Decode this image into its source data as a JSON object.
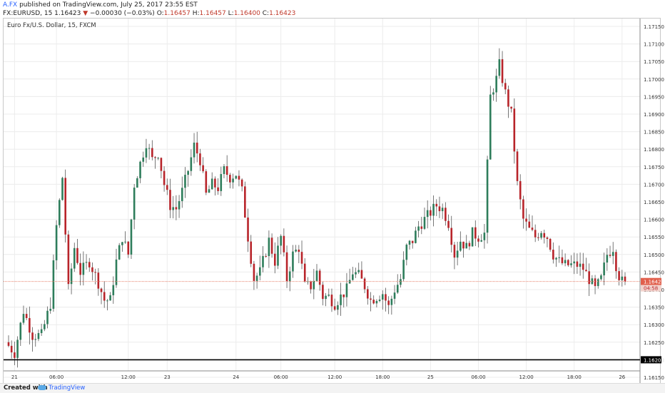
{
  "header": {
    "user": "A.FX",
    "published": " published on TradingView.com, July 25, 2017 23:55 EST",
    "symbol_line_start": "FX:EURUSD, 15  1.16423",
    "change": " −0.00030 (−0.03%)",
    "o_label": " O:",
    "o_value": "1.16457",
    "h_label": " H:",
    "h_value": "1.16457",
    "l_label": " L:",
    "l_value": "1.16400",
    "c_label": " C:",
    "c_value": "1.16423",
    "down_arrow": "▼"
  },
  "legend": "Euro Fx/U.S. Dollar, 15, FXCM",
  "price_label": "1.16423",
  "countdown_label": "04:58",
  "support_label": "1.16200",
  "footer": {
    "created_with": "Created with",
    "brand": "TradingView"
  },
  "colors": {
    "up": "#2e7d5b",
    "down": "#b8242a",
    "wick": "#555555",
    "price_line": "#e8806c",
    "price_box": "#e15f4c",
    "support": "#000000",
    "grid": "#ececec"
  },
  "chart_data": {
    "type": "candlestick",
    "interval": "15",
    "ylim": [
      1.1615,
      1.1715
    ],
    "y_ticks": [
      "1.16150",
      "1.16200",
      "1.16250",
      "1.16300",
      "1.16350",
      "1.16400",
      "1.16450",
      "1.16500",
      "1.16550",
      "1.16600",
      "1.16650",
      "1.16700",
      "1.16750",
      "1.16800",
      "1.16850",
      "1.16900",
      "1.16950",
      "1.17000",
      "1.17050",
      "1.17100",
      "1.17150"
    ],
    "x_ticks": [
      "21",
      "06:00",
      "12:00",
      "23",
      "24",
      "06:00",
      "12:00",
      "18:00",
      "25",
      "06:00",
      "12:00",
      "18:00",
      "26"
    ],
    "x_tick_positions": [
      2,
      16,
      40,
      53,
      76,
      91,
      109,
      125,
      141,
      157,
      173,
      189,
      205
    ],
    "bar_count": 207,
    "last_price": 1.16423,
    "support_level": 1.162,
    "anchors": [
      [
        0,
        1.1625
      ],
      [
        3,
        1.1622
      ],
      [
        6,
        1.1634
      ],
      [
        9,
        1.1627
      ],
      [
        12,
        1.1627
      ],
      [
        15,
        1.1636
      ],
      [
        17,
        1.1658
      ],
      [
        19,
        1.1672
      ],
      [
        21,
        1.164
      ],
      [
        23,
        1.1652
      ],
      [
        25,
        1.1645
      ],
      [
        28,
        1.1648
      ],
      [
        31,
        1.1642
      ],
      [
        33,
        1.1637
      ],
      [
        35,
        1.1637
      ],
      [
        37,
        1.1648
      ],
      [
        39,
        1.1655
      ],
      [
        41,
        1.165
      ],
      [
        43,
        1.167
      ],
      [
        45,
        1.1676
      ],
      [
        47,
        1.1682
      ],
      [
        49,
        1.1677
      ],
      [
        51,
        1.1679
      ],
      [
        53,
        1.167
      ],
      [
        55,
        1.1664
      ],
      [
        57,
        1.1663
      ],
      [
        59,
        1.1668
      ],
      [
        61,
        1.1674
      ],
      [
        63,
        1.1681
      ],
      [
        65,
        1.1677
      ],
      [
        67,
        1.1667
      ],
      [
        69,
        1.167
      ],
      [
        71,
        1.1669
      ],
      [
        73,
        1.1674
      ],
      [
        75,
        1.1672
      ],
      [
        77,
        1.1673
      ],
      [
        79,
        1.1668
      ],
      [
        81,
        1.1655
      ],
      [
        83,
        1.1643
      ],
      [
        85,
        1.1645
      ],
      [
        88,
        1.1654
      ],
      [
        90,
        1.1648
      ],
      [
        92,
        1.1655
      ],
      [
        94,
        1.1643
      ],
      [
        96,
        1.165
      ],
      [
        98,
        1.1652
      ],
      [
        100,
        1.1641
      ],
      [
        102,
        1.1641
      ],
      [
        104,
        1.1645
      ],
      [
        106,
        1.1638
      ],
      [
        108,
        1.1638
      ],
      [
        110,
        1.1636
      ],
      [
        112,
        1.1638
      ],
      [
        114,
        1.164
      ],
      [
        116,
        1.1645
      ],
      [
        118,
        1.1644
      ],
      [
        120,
        1.1641
      ],
      [
        122,
        1.1637
      ],
      [
        124,
        1.1638
      ],
      [
        126,
        1.1639
      ],
      [
        128,
        1.1635
      ],
      [
        130,
        1.164
      ],
      [
        132,
        1.1643
      ],
      [
        134,
        1.1652
      ],
      [
        136,
        1.1654
      ],
      [
        138,
        1.1658
      ],
      [
        140,
        1.166
      ],
      [
        142,
        1.1662
      ],
      [
        144,
        1.1664
      ],
      [
        146,
        1.1663
      ],
      [
        148,
        1.1659
      ],
      [
        150,
        1.165
      ],
      [
        152,
        1.1654
      ],
      [
        154,
        1.1652
      ],
      [
        156,
        1.1656
      ],
      [
        158,
        1.1655
      ],
      [
        160,
        1.1656
      ],
      [
        162,
        1.1695
      ],
      [
        164,
        1.17
      ],
      [
        165,
        1.1704
      ],
      [
        167,
        1.1696
      ],
      [
        169,
        1.169
      ],
      [
        171,
        1.167
      ],
      [
        173,
        1.166
      ],
      [
        175,
        1.1657
      ],
      [
        177,
        1.1655
      ],
      [
        179,
        1.1657
      ],
      [
        181,
        1.1655
      ],
      [
        183,
        1.165
      ],
      [
        185,
        1.1648
      ],
      [
        187,
        1.1647
      ],
      [
        189,
        1.1647
      ],
      [
        191,
        1.1647
      ],
      [
        193,
        1.1646
      ],
      [
        195,
        1.1643
      ],
      [
        197,
        1.164
      ],
      [
        199,
        1.1643
      ],
      [
        201,
        1.165
      ],
      [
        203,
        1.1652
      ],
      [
        204,
        1.1647
      ],
      [
        205,
        1.1644
      ],
      [
        206,
        1.16423
      ]
    ]
  }
}
